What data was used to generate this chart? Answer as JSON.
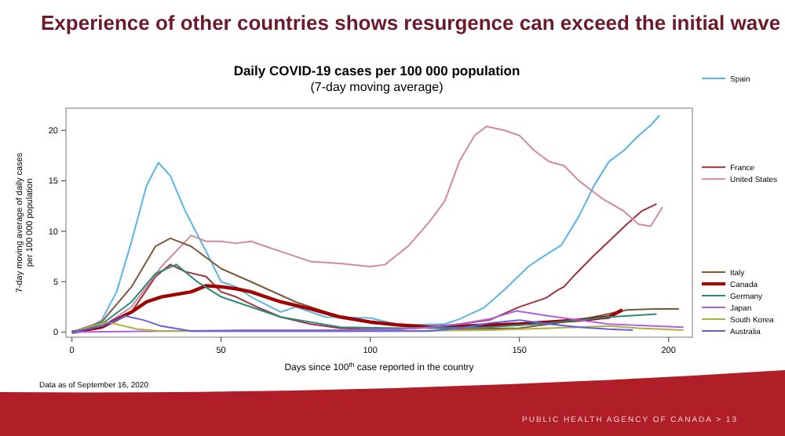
{
  "chart_data": {
    "type": "line",
    "title": "Experience of other countries shows resurgence can exceed the initial wave",
    "subtitle": "Daily COVID-19 cases per 100 000 population\n(7-day moving average)",
    "xlabel": "Days since 100$^{th}$ case reported in the country",
    "ylabel": "7-day moving average of daily cases\nper 100 000 population",
    "annotations": [
      "Data as of September 16, 2020",
      "PUBLIC HEALTH AGENCY OF CANADA > 13"
    ],
    "xlim": [
      -2,
      208
    ],
    "ylim": [
      -0.5,
      22.2
    ],
    "xticks": [
      0,
      50,
      100,
      150,
      200
    ],
    "yticks": [
      0,
      5,
      10,
      15,
      20
    ],
    "grid": false,
    "legend": "right",
    "line_style": "solid",
    "marker": "none",
    "series": [
      {
        "name": "Spain",
        "color": "#5ab4e5",
        "x": [
          0,
          5,
          10,
          15,
          20,
          25,
          29,
          33,
          38,
          45,
          50,
          55,
          60,
          70,
          75,
          85,
          100,
          110,
          125,
          130,
          138,
          145,
          153,
          158,
          164,
          170,
          175,
          180,
          185,
          190,
          194,
          197
        ],
        "values": [
          0,
          0.3,
          1.2,
          4,
          9,
          14.5,
          16.8,
          15.5,
          12,
          8,
          5,
          4.5,
          3.5,
          2,
          2.5,
          1.5,
          1.4,
          0.7,
          0.8,
          1.3,
          2.4,
          4.2,
          6.5,
          7.5,
          8.6,
          11.5,
          14.5,
          16.9,
          18,
          19.5,
          20.5,
          21.5
        ]
      },
      {
        "name": "France",
        "color": "#a0303a",
        "x": [
          0,
          10,
          20,
          28,
          33,
          38,
          45,
          50,
          55,
          62,
          70,
          80,
          90,
          100,
          110,
          120,
          130,
          140,
          150,
          159,
          163,
          165,
          168,
          175,
          180,
          186,
          191,
          196
        ],
        "values": [
          0,
          0.5,
          2,
          5.5,
          6.7,
          6,
          5.5,
          4,
          3.5,
          2.5,
          1.5,
          0.8,
          0.4,
          0.3,
          0.3,
          0.5,
          0.8,
          1.2,
          2.5,
          3.4,
          4.2,
          4.5,
          5.5,
          7.6,
          9,
          10.7,
          12,
          12.7
        ]
      },
      {
        "name": "United States",
        "color": "#d08ba0",
        "x": [
          0,
          10,
          20,
          30,
          40,
          45,
          50,
          55,
          60,
          65,
          70,
          80,
          90,
          100,
          105,
          113,
          120,
          125,
          130,
          135,
          139,
          145,
          150,
          155,
          160,
          165,
          170,
          178,
          185,
          190,
          194,
          198
        ],
        "values": [
          0,
          0.5,
          2.5,
          6.5,
          9.6,
          9,
          9,
          8.8,
          9,
          8.5,
          8,
          7,
          6.8,
          6.5,
          6.7,
          8.6,
          11,
          13,
          17,
          19.5,
          20.4,
          20,
          19.5,
          18,
          16.9,
          16.5,
          15,
          13.2,
          12,
          10.7,
          10.5,
          12.4
        ]
      },
      {
        "name": "Italy",
        "color": "#7a5a3a",
        "x": [
          0,
          10,
          20,
          28,
          33,
          40,
          50,
          60,
          75,
          90,
          100,
          115,
          130,
          150,
          170,
          186,
          195,
          203.5
        ],
        "values": [
          0,
          1,
          4.5,
          8.5,
          9.3,
          8.5,
          6.3,
          5,
          3,
          1.5,
          1,
          0.5,
          0.3,
          0.4,
          1.2,
          2.2,
          2.3,
          2.3
        ]
      },
      {
        "name": "Canada",
        "color": "#a00000",
        "x": [
          0,
          10,
          20,
          25,
          30,
          40,
          45,
          50,
          55,
          60,
          70,
          80,
          90,
          100,
          110,
          120,
          130,
          140,
          150,
          160,
          170,
          180,
          184.5
        ],
        "values": [
          0,
          0.5,
          2,
          3,
          3.5,
          4,
          4.6,
          4.5,
          4.3,
          4,
          3,
          2.3,
          1.5,
          1,
          0.7,
          0.5,
          0.6,
          0.7,
          0.8,
          1,
          1.2,
          1.5,
          2.2
        ]
      },
      {
        "name": "Germany",
        "color": "#2a8a7a",
        "x": [
          0,
          10,
          20,
          28,
          35,
          42,
          50,
          55,
          70,
          90,
          110,
          140,
          160,
          180,
          196
        ],
        "values": [
          0,
          0.8,
          3,
          5.8,
          6.7,
          5,
          3.5,
          3,
          1.5,
          0.5,
          0.4,
          0.5,
          0.9,
          1.5,
          1.8
        ]
      },
      {
        "name": "Japan",
        "color": "#b060e0",
        "x": [
          0,
          30,
          60,
          90,
          110,
          120,
          130,
          140,
          149,
          160,
          170,
          180,
          195,
          205
        ],
        "values": [
          0,
          0.1,
          0.2,
          0.2,
          0.3,
          0.5,
          0.8,
          1.3,
          2.1,
          1.6,
          1.2,
          0.8,
          0.6,
          0.5
        ]
      },
      {
        "name": "South Korea",
        "color": "#b0b040",
        "x": [
          0,
          8,
          12,
          16,
          22,
          30,
          60,
          100,
          140,
          160,
          180,
          190,
          205
        ],
        "values": [
          0,
          0.7,
          1,
          0.7,
          0.3,
          0.1,
          0.1,
          0.1,
          0.2,
          0.4,
          0.6,
          0.4,
          0.2
        ]
      },
      {
        "name": "Australia",
        "color": "#6060e0",
        "x": [
          0,
          10,
          18,
          24,
          30,
          40,
          60,
          100,
          120,
          130,
          140,
          150,
          160,
          170,
          180,
          188
        ],
        "values": [
          0,
          0.6,
          1.6,
          1.2,
          0.6,
          0.1,
          0.1,
          0.1,
          0.1,
          0.4,
          0.9,
          1.2,
          0.8,
          0.5,
          0.3,
          0.2
        ]
      }
    ]
  }
}
